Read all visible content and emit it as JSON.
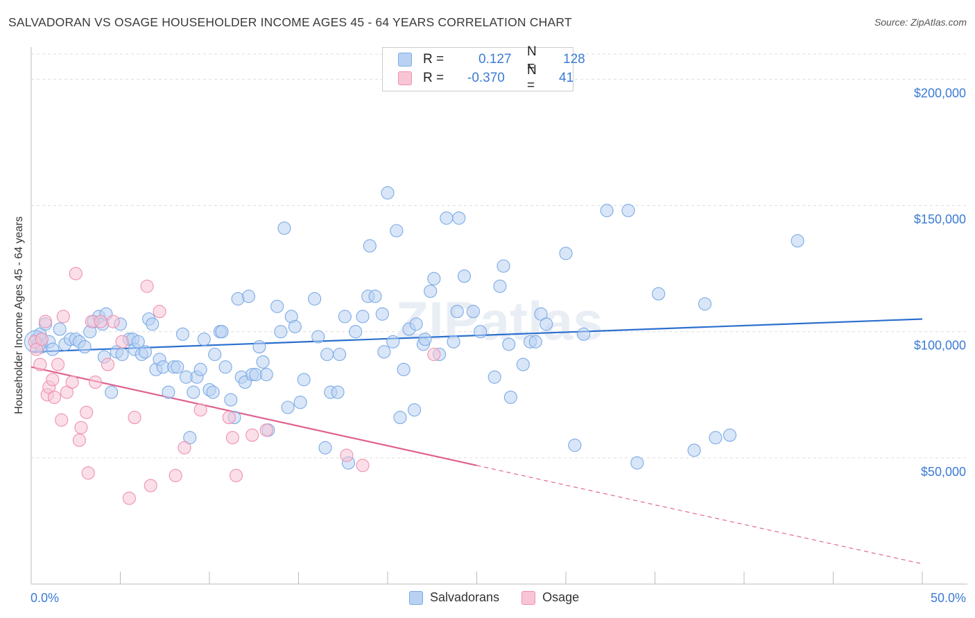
{
  "title": "SALVADORAN VS OSAGE HOUSEHOLDER INCOME AGES 45 - 64 YEARS CORRELATION CHART",
  "source": "Source: ZipAtlas.com",
  "watermark": "ZIPatlas",
  "colors": {
    "blue": "#7aaae6",
    "blue_fill": "#b9d2f3",
    "blue_line": "#2b6fce",
    "pink": "#ef8fb0",
    "pink_fill": "#f8c5d5",
    "pink_line": "#e0608e",
    "axis_text": "#3a7bd5"
  },
  "stats": {
    "r_label": "R =",
    "n_label": "N =",
    "rows": [
      {
        "series": "Salvadorans",
        "r": "0.127",
        "n": "128"
      },
      {
        "series": "Osage",
        "r": "-0.370",
        "n": "41"
      }
    ]
  },
  "chart_data": {
    "type": "scatter",
    "title": "SALVADORAN VS OSAGE HOUSEHOLDER INCOME AGES 45 - 64 YEARS CORRELATION CHART",
    "xlabel": "",
    "ylabel": "Householder Income Ages 45 - 64 years",
    "xlim": [
      0,
      50
    ],
    "ylim": [
      0,
      210000
    ],
    "x_tick_labels": [
      "0.0%",
      "50.0%"
    ],
    "y_ticks": [
      50000,
      100000,
      150000,
      200000
    ],
    "y_tick_labels": [
      "$50,000",
      "$100,000",
      "$150,000",
      "$200,000"
    ],
    "grid": true,
    "legend_position": "bottom",
    "series": [
      {
        "name": "Salvadorans",
        "color": "#7aaae6",
        "trend": {
          "x": [
            0,
            50
          ],
          "y": [
            92000,
            105000
          ],
          "solid_until": 50
        },
        "points": [
          [
            0.3,
            97000
          ],
          [
            0.4,
            95000
          ],
          [
            0.5,
            99000
          ],
          [
            0.6,
            94000
          ],
          [
            0.8,
            103000
          ],
          [
            1.0,
            96000
          ],
          [
            1.2,
            93000
          ],
          [
            1.6,
            101000
          ],
          [
            1.9,
            95000
          ],
          [
            2.2,
            97000
          ],
          [
            2.5,
            97000
          ],
          [
            2.7,
            96000
          ],
          [
            3.0,
            94000
          ],
          [
            3.3,
            100000
          ],
          [
            3.5,
            104000
          ],
          [
            3.8,
            106000
          ],
          [
            4.0,
            103000
          ],
          [
            4.1,
            90000
          ],
          [
            4.2,
            107000
          ],
          [
            4.5,
            76000
          ],
          [
            4.8,
            92000
          ],
          [
            5.0,
            103000
          ],
          [
            5.1,
            91000
          ],
          [
            5.5,
            97000
          ],
          [
            5.7,
            97000
          ],
          [
            5.8,
            93000
          ],
          [
            6.0,
            96000
          ],
          [
            6.2,
            91000
          ],
          [
            6.4,
            92000
          ],
          [
            6.6,
            105000
          ],
          [
            6.8,
            103000
          ],
          [
            7.0,
            85000
          ],
          [
            7.2,
            89000
          ],
          [
            7.4,
            86000
          ],
          [
            7.7,
            76000
          ],
          [
            8.0,
            86000
          ],
          [
            8.2,
            86000
          ],
          [
            8.5,
            99000
          ],
          [
            8.7,
            82000
          ],
          [
            8.9,
            58000
          ],
          [
            9.1,
            76000
          ],
          [
            9.3,
            82000
          ],
          [
            9.5,
            85000
          ],
          [
            9.7,
            97000
          ],
          [
            10.0,
            77000
          ],
          [
            10.2,
            76000
          ],
          [
            10.3,
            91000
          ],
          [
            10.6,
            100000
          ],
          [
            10.7,
            100000
          ],
          [
            10.9,
            86000
          ],
          [
            11.2,
            73000
          ],
          [
            11.4,
            66000
          ],
          [
            11.6,
            113000
          ],
          [
            11.8,
            82000
          ],
          [
            12.0,
            80000
          ],
          [
            12.2,
            114000
          ],
          [
            12.4,
            83000
          ],
          [
            12.6,
            83000
          ],
          [
            12.8,
            94000
          ],
          [
            13.0,
            88000
          ],
          [
            13.2,
            83000
          ],
          [
            13.3,
            61000
          ],
          [
            13.8,
            110000
          ],
          [
            14.0,
            100000
          ],
          [
            14.2,
            141000
          ],
          [
            14.4,
            70000
          ],
          [
            14.6,
            106000
          ],
          [
            14.8,
            102000
          ],
          [
            15.1,
            72000
          ],
          [
            15.3,
            81000
          ],
          [
            15.9,
            113000
          ],
          [
            16.1,
            98000
          ],
          [
            16.5,
            54000
          ],
          [
            16.6,
            91000
          ],
          [
            16.8,
            76000
          ],
          [
            17.2,
            76000
          ],
          [
            17.3,
            91000
          ],
          [
            17.6,
            106000
          ],
          [
            17.8,
            48000
          ],
          [
            18.2,
            100000
          ],
          [
            18.6,
            106000
          ],
          [
            18.9,
            114000
          ],
          [
            19.0,
            134000
          ],
          [
            19.3,
            114000
          ],
          [
            19.7,
            107000
          ],
          [
            19.8,
            92000
          ],
          [
            20.0,
            155000
          ],
          [
            20.3,
            96000
          ],
          [
            20.5,
            140000
          ],
          [
            20.7,
            66000
          ],
          [
            20.9,
            85000
          ],
          [
            21.2,
            101000
          ],
          [
            21.5,
            69000
          ],
          [
            21.6,
            103000
          ],
          [
            22.0,
            95000
          ],
          [
            22.1,
            97000
          ],
          [
            22.4,
            116000
          ],
          [
            22.6,
            121000
          ],
          [
            22.9,
            91000
          ],
          [
            23.3,
            145000
          ],
          [
            23.7,
            96000
          ],
          [
            23.9,
            108000
          ],
          [
            24.0,
            145000
          ],
          [
            24.3,
            122000
          ],
          [
            24.8,
            108000
          ],
          [
            25.2,
            100000
          ],
          [
            26.0,
            82000
          ],
          [
            26.3,
            118000
          ],
          [
            26.5,
            126000
          ],
          [
            26.8,
            95000
          ],
          [
            26.9,
            74000
          ],
          [
            27.6,
            87000
          ],
          [
            28.0,
            96000
          ],
          [
            28.3,
            96000
          ],
          [
            28.6,
            107000
          ],
          [
            28.9,
            103000
          ],
          [
            30.0,
            131000
          ],
          [
            30.5,
            55000
          ],
          [
            31.0,
            99000
          ],
          [
            32.3,
            148000
          ],
          [
            33.5,
            148000
          ],
          [
            34.0,
            48000
          ],
          [
            35.2,
            115000
          ],
          [
            37.2,
            53000
          ],
          [
            37.8,
            111000
          ],
          [
            38.4,
            58000
          ],
          [
            39.2,
            59000
          ],
          [
            43.0,
            136000
          ]
        ]
      },
      {
        "name": "Osage",
        "color": "#ef8fb0",
        "trend": {
          "x": [
            0,
            50
          ],
          "y": [
            86000,
            8000
          ],
          "solid_until": 25
        },
        "points": [
          [
            0.2,
            96000
          ],
          [
            0.3,
            93000
          ],
          [
            0.5,
            87000
          ],
          [
            0.6,
            97000
          ],
          [
            0.8,
            104000
          ],
          [
            0.9,
            75000
          ],
          [
            1.0,
            78000
          ],
          [
            1.2,
            81000
          ],
          [
            1.3,
            74000
          ],
          [
            1.5,
            87000
          ],
          [
            1.7,
            65000
          ],
          [
            1.8,
            106000
          ],
          [
            2.0,
            76000
          ],
          [
            2.3,
            80000
          ],
          [
            2.5,
            123000
          ],
          [
            2.7,
            57000
          ],
          [
            2.8,
            62000
          ],
          [
            3.1,
            68000
          ],
          [
            3.2,
            44000
          ],
          [
            3.4,
            104000
          ],
          [
            3.6,
            80000
          ],
          [
            3.9,
            104000
          ],
          [
            4.3,
            87000
          ],
          [
            4.6,
            104000
          ],
          [
            5.1,
            96000
          ],
          [
            5.5,
            34000
          ],
          [
            5.8,
            66000
          ],
          [
            6.5,
            118000
          ],
          [
            6.7,
            39000
          ],
          [
            7.2,
            108000
          ],
          [
            8.1,
            43000
          ],
          [
            8.6,
            54000
          ],
          [
            9.5,
            69000
          ],
          [
            11.1,
            66000
          ],
          [
            11.3,
            58000
          ],
          [
            11.5,
            43000
          ],
          [
            12.4,
            59000
          ],
          [
            13.2,
            61000
          ],
          [
            17.7,
            51000
          ],
          [
            18.6,
            47000
          ],
          [
            22.6,
            91000
          ]
        ]
      }
    ]
  }
}
